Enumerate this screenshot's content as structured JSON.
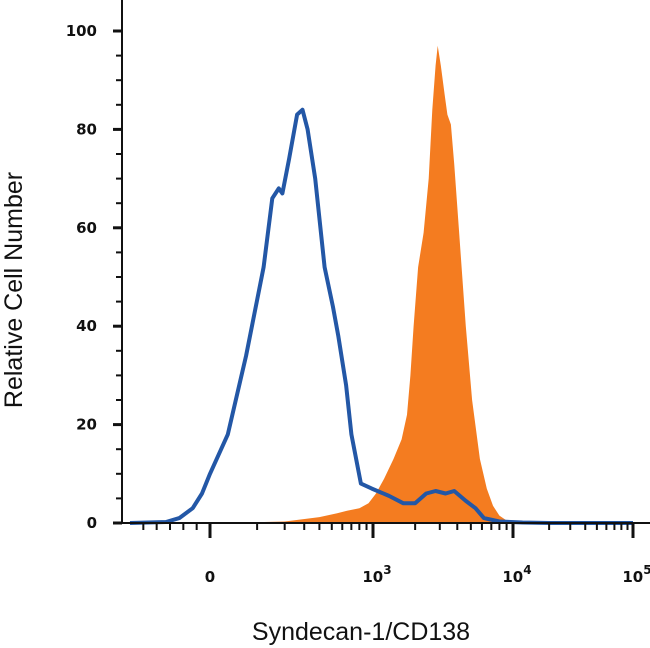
{
  "chart_data": {
    "type": "area",
    "title": "",
    "xlabel": "Syndecan-1/CD138",
    "ylabel": "Relative Cell Number",
    "xscale": "biexponential",
    "xlim": [
      -600,
      100000
    ],
    "ylim": [
      0,
      100
    ],
    "y_ticks": [
      0,
      20,
      40,
      60,
      80,
      100
    ],
    "x_ticks": [
      {
        "value": 0,
        "base": "0",
        "exp": ""
      },
      {
        "value": 1000,
        "base": "10",
        "exp": "3"
      },
      {
        "value": 10000,
        "base": "10",
        "exp": "4"
      },
      {
        "value": 100000,
        "base": "10",
        "exp": "5"
      }
    ],
    "grid": false,
    "legend": "none",
    "series": [
      {
        "style": "outline",
        "color": "#2357a6",
        "points": [
          [
            -600,
            0
          ],
          [
            -330,
            0.2
          ],
          [
            -230,
            1
          ],
          [
            -130,
            3
          ],
          [
            -60,
            6
          ],
          [
            0,
            10
          ],
          [
            30,
            18
          ],
          [
            70,
            34
          ],
          [
            120,
            52
          ],
          [
            150,
            66
          ],
          [
            175,
            68
          ],
          [
            190,
            67
          ],
          [
            220,
            74
          ],
          [
            260,
            83
          ],
          [
            290,
            84
          ],
          [
            320,
            80
          ],
          [
            370,
            70
          ],
          [
            440,
            52
          ],
          [
            510,
            44
          ],
          [
            560,
            38
          ],
          [
            640,
            28
          ],
          [
            700,
            18
          ],
          [
            820,
            8
          ],
          [
            980,
            7
          ],
          [
            1300,
            5.5
          ],
          [
            1650,
            4
          ],
          [
            2000,
            4
          ],
          [
            2400,
            6
          ],
          [
            2800,
            6.5
          ],
          [
            3300,
            6
          ],
          [
            3800,
            6.5
          ],
          [
            4600,
            4.5
          ],
          [
            5400,
            3
          ],
          [
            6200,
            1
          ],
          [
            8000,
            0.3
          ],
          [
            12000,
            0.1
          ],
          [
            20000,
            0
          ],
          [
            100000,
            0
          ]
        ]
      },
      {
        "style": "filled",
        "color": "#f47c20",
        "points": [
          [
            -600,
            0
          ],
          [
            20,
            0
          ],
          [
            200,
            0.3
          ],
          [
            400,
            1.2
          ],
          [
            550,
            2
          ],
          [
            650,
            2.5
          ],
          [
            800,
            3
          ],
          [
            930,
            4
          ],
          [
            1050,
            6
          ],
          [
            1200,
            9
          ],
          [
            1400,
            13
          ],
          [
            1600,
            17
          ],
          [
            1750,
            22
          ],
          [
            1850,
            30
          ],
          [
            1950,
            40
          ],
          [
            2100,
            52
          ],
          [
            2300,
            59
          ],
          [
            2500,
            70
          ],
          [
            2650,
            84
          ],
          [
            2800,
            93
          ],
          [
            2900,
            97
          ],
          [
            3050,
            93
          ],
          [
            3250,
            87
          ],
          [
            3400,
            83
          ],
          [
            3600,
            81
          ],
          [
            3800,
            73
          ],
          [
            4100,
            60
          ],
          [
            4600,
            40
          ],
          [
            5100,
            25
          ],
          [
            5800,
            13
          ],
          [
            6500,
            7
          ],
          [
            7200,
            3.5
          ],
          [
            8000,
            1.5
          ],
          [
            9000,
            0.5
          ],
          [
            10500,
            0
          ],
          [
            100000,
            0
          ]
        ]
      }
    ]
  }
}
